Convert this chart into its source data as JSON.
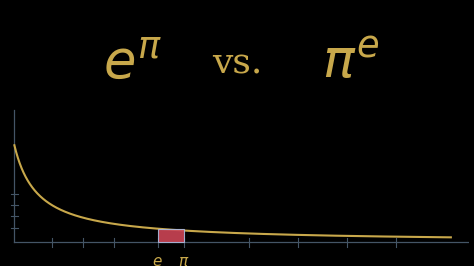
{
  "background_color": "#000000",
  "curve_color": "#c8a84b",
  "curve_linewidth": 1.5,
  "axis_color": "#445566",
  "rectangle_facecolor": "#cc4455",
  "rectangle_edgecolor": "#aabbdd",
  "rectangle_alpha": 0.9,
  "title_color": "#c8a84b",
  "label_color": "#c8a84b",
  "label_fontsize": 11,
  "e_val": 2.71828,
  "pi_val": 3.14159,
  "tick_color": "#445566",
  "tick_linewidth": 0.8,
  "curve_xstart": 0.38,
  "curve_xend": 7.5,
  "xlim": [
    0.3,
    7.8
  ],
  "ylim": [
    -0.5,
    6.5
  ],
  "x_axis_y": 0.0,
  "y_axis_x": 0.38
}
